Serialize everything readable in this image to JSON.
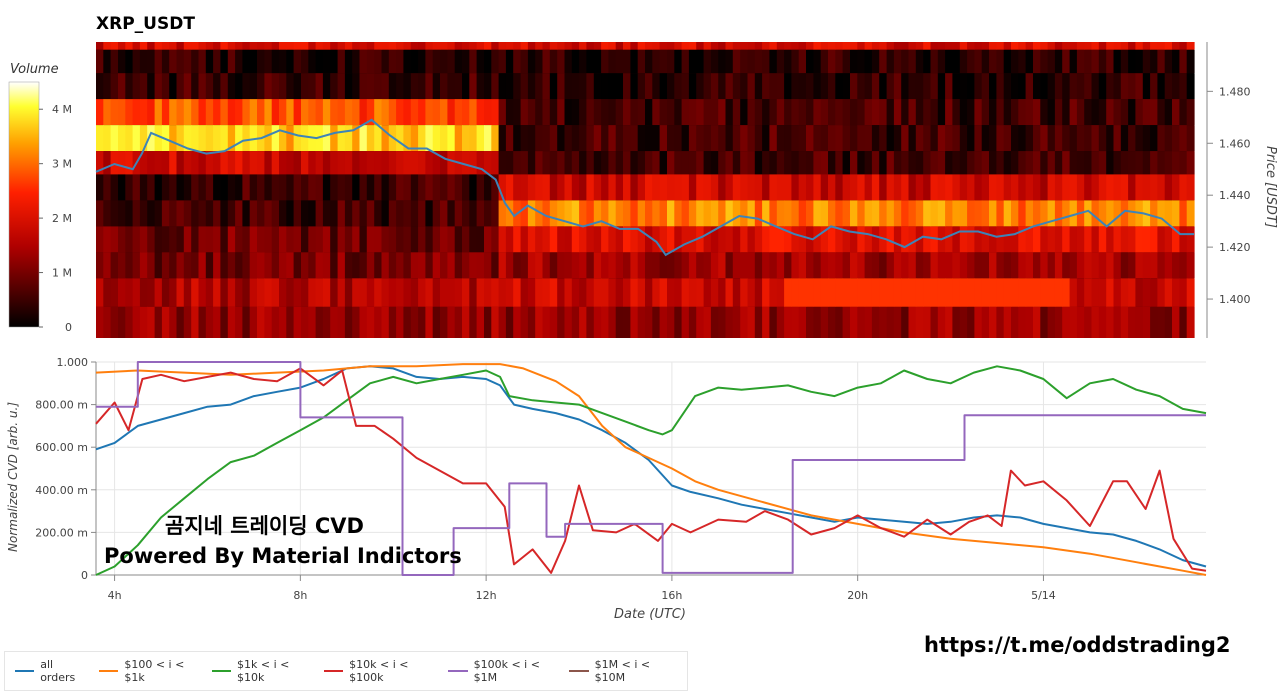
{
  "title": "XRP_USDT",
  "watermark": {
    "line1": "곰지네 트레이딩 CVD",
    "line2": "Powered By Material Indictors"
  },
  "url": "https://t.me/oddstrading2",
  "chart_data": [
    {
      "type": "heatmap",
      "colorbar": {
        "title": "Volume",
        "ticks": [
          "0",
          "1 M",
          "2 M",
          "3 M",
          "4 M"
        ],
        "tick_values": [
          0,
          1000000,
          2000000,
          3000000,
          4000000
        ],
        "range": [
          0,
          4500000
        ]
      },
      "ylabel": "Price [USDT]",
      "ylim": [
        1.385,
        1.499
      ],
      "y_ticks": [
        "1.400",
        "1.420",
        "1.440",
        "1.460",
        "1.480"
      ],
      "y_tick_values": [
        1.4,
        1.42,
        1.44,
        1.46,
        1.48
      ],
      "xlim_hours": [
        3.6,
        27.5
      ],
      "price_series": {
        "x": [
          3.6,
          4.0,
          4.4,
          4.6,
          4.8,
          5.2,
          5.6,
          6.0,
          6.4,
          6.8,
          7.2,
          7.6,
          8.0,
          8.4,
          8.8,
          9.2,
          9.6,
          10.0,
          10.4,
          10.8,
          11.2,
          11.6,
          12.0,
          12.3,
          12.5,
          12.7,
          13.0,
          13.4,
          13.8,
          14.2,
          14.6,
          15.0,
          15.4,
          15.8,
          16.0,
          16.4,
          16.8,
          17.2,
          17.6,
          18.0,
          18.4,
          18.8,
          19.2,
          19.6,
          20.0,
          20.4,
          20.8,
          21.2,
          21.6,
          22.0,
          22.4,
          22.8,
          23.2,
          23.6,
          24.0,
          24.4,
          24.8,
          25.2,
          25.6,
          26.0,
          26.4,
          26.8,
          27.2,
          27.5
        ],
        "y": [
          1.449,
          1.452,
          1.45,
          1.456,
          1.464,
          1.461,
          1.458,
          1.456,
          1.457,
          1.461,
          1.462,
          1.465,
          1.463,
          1.462,
          1.464,
          1.465,
          1.469,
          1.463,
          1.458,
          1.458,
          1.454,
          1.452,
          1.45,
          1.446,
          1.437,
          1.432,
          1.436,
          1.432,
          1.43,
          1.428,
          1.43,
          1.427,
          1.427,
          1.422,
          1.417,
          1.421,
          1.424,
          1.428,
          1.432,
          1.431,
          1.428,
          1.425,
          1.423,
          1.428,
          1.426,
          1.425,
          1.423,
          1.42,
          1.424,
          1.423,
          1.426,
          1.426,
          1.424,
          1.425,
          1.428,
          1.43,
          1.432,
          1.434,
          1.428,
          1.434,
          1.433,
          1.431,
          1.425,
          1.425
        ]
      },
      "bands": [
        {
          "low": 1.496,
          "high": 1.499,
          "level": [
            0.42,
            0.42
          ]
        },
        {
          "low": 1.487,
          "high": 1.496,
          "level": [
            0.08,
            0.08
          ]
        },
        {
          "low": 1.477,
          "high": 1.487,
          "level": [
            0.1,
            0.08
          ]
        },
        {
          "low": 1.467,
          "high": 1.477,
          "level": [
            0.62,
            0.12
          ]
        },
        {
          "low": 1.457,
          "high": 1.467,
          "level": [
            0.82,
            0.12
          ]
        },
        {
          "low": 1.448,
          "high": 1.457,
          "level": [
            0.4,
            0.12
          ]
        },
        {
          "low": 1.438,
          "high": 1.448,
          "level": [
            0.1,
            0.4
          ]
        },
        {
          "low": 1.428,
          "high": 1.438,
          "level": [
            0.12,
            0.7
          ]
        },
        {
          "low": 1.418,
          "high": 1.428,
          "level": [
            0.2,
            0.45
          ]
        },
        {
          "low": 1.408,
          "high": 1.418,
          "level": [
            0.22,
            0.3
          ]
        },
        {
          "low": 1.397,
          "high": 1.408,
          "level": [
            0.34,
            0.4
          ]
        },
        {
          "low": 1.385,
          "high": 1.397,
          "level": [
            0.28,
            0.28
          ]
        }
      ]
    },
    {
      "type": "line",
      "xlabel": "Date (UTC)",
      "ylabel": "Normalized CVD [arb. u.]",
      "ylim": [
        0,
        1
      ],
      "y_ticks": [
        "0",
        "200.00 m",
        "400.00 m",
        "600.00 m",
        "800.00 m",
        "1.000"
      ],
      "y_tick_values": [
        0,
        0.2,
        0.4,
        0.6,
        0.8,
        1.0
      ],
      "xlim_hours": [
        3.6,
        27.5
      ],
      "x_ticks": [
        "4h",
        "8h",
        "12h",
        "16h",
        "20h",
        "5/14"
      ],
      "x_tick_values": [
        4,
        8,
        12,
        16,
        20,
        24
      ],
      "series": [
        {
          "name": "all orders",
          "color": "#1f77b4",
          "x": [
            3.6,
            4.0,
            4.5,
            5.0,
            5.5,
            6.0,
            6.5,
            7.0,
            7.5,
            8.0,
            8.5,
            9.0,
            9.5,
            10.0,
            10.5,
            11.0,
            11.5,
            12.0,
            12.3,
            12.6,
            13.0,
            13.5,
            14.0,
            14.5,
            15.0,
            15.5,
            16.0,
            16.4,
            17.0,
            17.5,
            18.0,
            18.5,
            19.0,
            19.5,
            20.0,
            20.5,
            21.0,
            21.5,
            22.0,
            22.5,
            23.0,
            23.5,
            24.0,
            24.5,
            25.0,
            25.5,
            26.0,
            26.5,
            27.0,
            27.5
          ],
          "y": [
            0.59,
            0.62,
            0.7,
            0.73,
            0.76,
            0.79,
            0.8,
            0.84,
            0.86,
            0.88,
            0.92,
            0.97,
            0.98,
            0.97,
            0.93,
            0.92,
            0.93,
            0.92,
            0.89,
            0.8,
            0.78,
            0.76,
            0.73,
            0.68,
            0.62,
            0.54,
            0.42,
            0.39,
            0.36,
            0.33,
            0.31,
            0.29,
            0.27,
            0.25,
            0.27,
            0.26,
            0.25,
            0.24,
            0.25,
            0.27,
            0.28,
            0.27,
            0.24,
            0.22,
            0.2,
            0.19,
            0.16,
            0.12,
            0.07,
            0.04
          ]
        },
        {
          "name": "$100 < i < $1k",
          "color": "#ff7f0e",
          "x": [
            3.6,
            4.5,
            5.5,
            6.5,
            7.5,
            8.5,
            9.5,
            10.5,
            11.5,
            12.3,
            12.8,
            13.5,
            14.0,
            14.5,
            15.0,
            15.5,
            16.0,
            16.5,
            17.0,
            18.0,
            19.0,
            20.0,
            21.0,
            22.0,
            23.0,
            24.0,
            25.0,
            26.0,
            27.0,
            27.5
          ],
          "y": [
            0.95,
            0.96,
            0.95,
            0.94,
            0.95,
            0.96,
            0.98,
            0.98,
            0.99,
            0.99,
            0.97,
            0.91,
            0.84,
            0.7,
            0.6,
            0.55,
            0.5,
            0.44,
            0.4,
            0.34,
            0.28,
            0.24,
            0.2,
            0.17,
            0.15,
            0.13,
            0.1,
            0.06,
            0.02,
            0.0
          ]
        },
        {
          "name": "$1k < i < $10k",
          "color": "#2ca02c",
          "x": [
            3.6,
            4.0,
            4.5,
            5.0,
            5.5,
            6.0,
            6.5,
            7.0,
            7.5,
            8.0,
            8.5,
            9.0,
            9.5,
            10.0,
            10.5,
            11.0,
            11.5,
            12.0,
            12.3,
            12.5,
            13.0,
            13.5,
            14.0,
            14.5,
            15.0,
            15.5,
            15.8,
            16.0,
            16.5,
            17.0,
            17.5,
            18.0,
            18.5,
            19.0,
            19.5,
            20.0,
            20.5,
            21.0,
            21.5,
            22.0,
            22.5,
            23.0,
            23.5,
            24.0,
            24.5,
            25.0,
            25.5,
            26.0,
            26.5,
            27.0,
            27.5
          ],
          "y": [
            0.0,
            0.04,
            0.14,
            0.27,
            0.36,
            0.45,
            0.53,
            0.56,
            0.62,
            0.68,
            0.74,
            0.82,
            0.9,
            0.93,
            0.9,
            0.92,
            0.94,
            0.96,
            0.93,
            0.84,
            0.82,
            0.81,
            0.8,
            0.76,
            0.72,
            0.68,
            0.66,
            0.68,
            0.84,
            0.88,
            0.87,
            0.88,
            0.89,
            0.86,
            0.84,
            0.88,
            0.9,
            0.96,
            0.92,
            0.9,
            0.95,
            0.98,
            0.96,
            0.92,
            0.83,
            0.9,
            0.92,
            0.87,
            0.84,
            0.78,
            0.76
          ]
        },
        {
          "name": "$10k < i < $100k",
          "color": "#d62728",
          "x": [
            3.6,
            4.0,
            4.3,
            4.6,
            5.0,
            5.5,
            6.0,
            6.5,
            7.0,
            7.5,
            8.0,
            8.5,
            8.9,
            9.2,
            9.6,
            10.0,
            10.5,
            11.0,
            11.5,
            12.0,
            12.4,
            12.6,
            13.0,
            13.4,
            13.7,
            14.0,
            14.3,
            14.8,
            15.2,
            15.7,
            16.0,
            16.4,
            17.0,
            17.6,
            18.0,
            18.5,
            19.0,
            19.5,
            20.0,
            20.5,
            21.0,
            21.5,
            22.0,
            22.4,
            22.8,
            23.1,
            23.3,
            23.6,
            24.0,
            24.5,
            25.0,
            25.5,
            25.8,
            26.2,
            26.5,
            26.8,
            27.2,
            27.5
          ],
          "y": [
            0.71,
            0.81,
            0.68,
            0.92,
            0.94,
            0.91,
            0.93,
            0.95,
            0.92,
            0.91,
            0.97,
            0.89,
            0.96,
            0.7,
            0.7,
            0.64,
            0.55,
            0.49,
            0.43,
            0.43,
            0.32,
            0.05,
            0.12,
            0.01,
            0.16,
            0.42,
            0.21,
            0.2,
            0.24,
            0.16,
            0.24,
            0.2,
            0.26,
            0.25,
            0.3,
            0.26,
            0.19,
            0.22,
            0.28,
            0.22,
            0.18,
            0.26,
            0.19,
            0.25,
            0.28,
            0.23,
            0.49,
            0.42,
            0.44,
            0.35,
            0.23,
            0.44,
            0.44,
            0.31,
            0.49,
            0.17,
            0.03,
            0.02
          ]
        },
        {
          "name": "$100k < i < $1M",
          "color": "#9467bd",
          "x": [
            3.6,
            4.5,
            4.5,
            8.0,
            8.0,
            10.2,
            10.2,
            11.3,
            11.3,
            12.5,
            12.5,
            13.3,
            13.3,
            13.7,
            13.7,
            15.8,
            15.8,
            18.6,
            18.6,
            22.3,
            22.3,
            27.5
          ],
          "y": [
            0.79,
            0.79,
            1.0,
            1.0,
            0.74,
            0.74,
            0.0,
            0.0,
            0.22,
            0.22,
            0.43,
            0.43,
            0.18,
            0.18,
            0.24,
            0.24,
            0.01,
            0.01,
            0.54,
            0.54,
            0.75,
            0.75
          ]
        },
        {
          "name": "$1M < i < $10M",
          "color": "#8c564b",
          "x": [],
          "y": []
        }
      ]
    }
  ]
}
